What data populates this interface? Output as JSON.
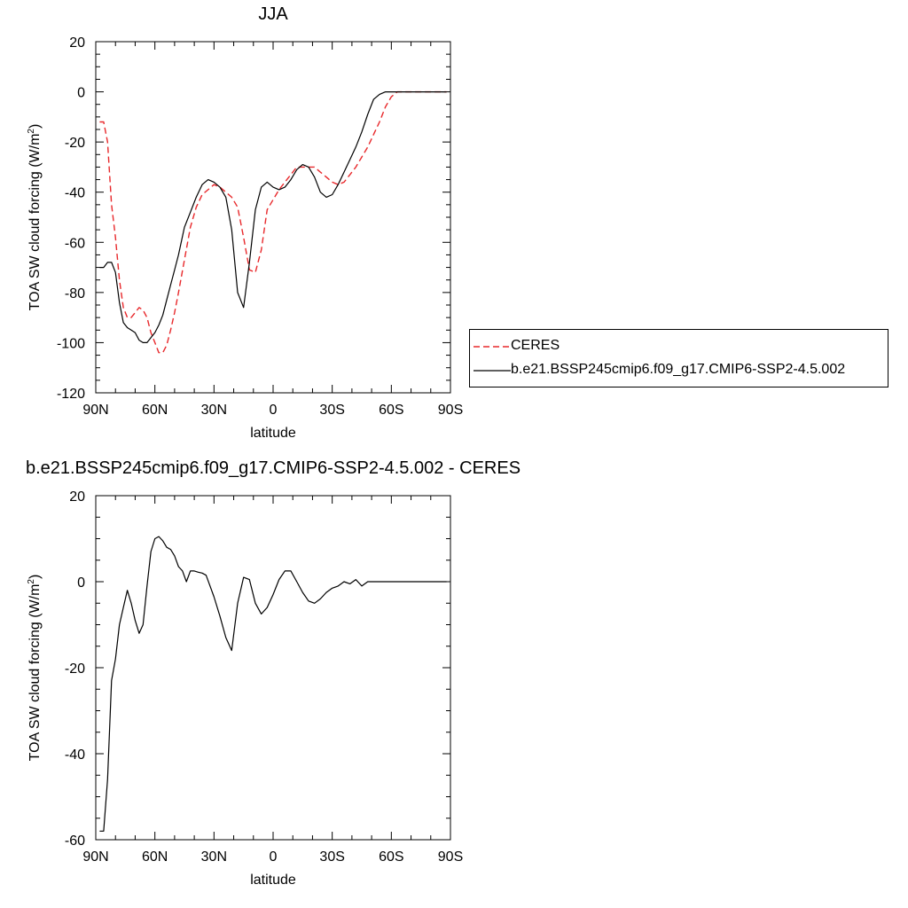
{
  "chart_data": [
    {
      "type": "line",
      "title": "JJA",
      "xlabel": "latitude",
      "ylabel": "TOA SW cloud forcing (W/m",
      "ylabel_sup": "2",
      "ylabel_suffix": ")",
      "xlim": [
        90,
        -90
      ],
      "ylim": [
        -120,
        20
      ],
      "xticks": [
        90,
        60,
        30,
        0,
        -30,
        -60,
        -90
      ],
      "xticklabels": [
        "90N",
        "60N",
        "30N",
        "0",
        "30S",
        "60S",
        "90S"
      ],
      "yticks": [
        20,
        0,
        -20,
        -40,
        -60,
        -80,
        -100,
        -120
      ],
      "yticklabels": [
        "20",
        "0",
        "-20",
        "-40",
        "-60",
        "-80",
        "-100",
        "-120"
      ],
      "legend_position": "right",
      "series": [
        {
          "name": "CERES",
          "color": "#e8282b",
          "style": "dashed",
          "x": [
            88,
            86,
            84,
            82,
            80,
            78,
            76,
            74,
            72,
            70,
            68,
            66,
            64,
            62,
            60,
            58,
            56,
            54,
            52,
            50,
            48,
            45,
            42,
            39,
            36,
            33,
            30,
            27,
            24,
            21,
            18,
            15,
            12,
            9,
            6,
            3,
            0,
            -3,
            -6,
            -9,
            -12,
            -15,
            -18,
            -21,
            -24,
            -27,
            -30,
            -33,
            -36,
            -39,
            -42,
            -45,
            -48,
            -51,
            -54,
            -57,
            -60,
            -63,
            -66,
            -69,
            -72,
            -75,
            -78,
            -81,
            -84,
            -87,
            -88
          ],
          "y": [
            -12,
            -12,
            -20,
            -45,
            -58,
            -75,
            -86,
            -90,
            -90,
            -88,
            -86,
            -87,
            -90,
            -96,
            -100,
            -104,
            -104,
            -101,
            -95,
            -88,
            -80,
            -67,
            -54,
            -46,
            -41,
            -39,
            -37,
            -38,
            -40,
            -42,
            -46,
            -58,
            -71,
            -72,
            -63,
            -47,
            -43,
            -39,
            -36,
            -33,
            -30,
            -30,
            -30,
            -30,
            -32,
            -34,
            -36,
            -37,
            -36,
            -33,
            -30,
            -26,
            -22,
            -17,
            -12,
            -6,
            -2,
            0,
            0,
            0,
            0,
            0,
            0,
            0,
            0,
            0,
            0
          ]
        },
        {
          "name": "b.e21.BSSP245cmip6.f09_g17.CMIP6-SSP2-4.5.002",
          "color": "#000000",
          "style": "solid",
          "x": [
            88,
            86,
            84,
            82,
            80,
            78,
            76,
            74,
            72,
            70,
            68,
            66,
            64,
            62,
            60,
            58,
            56,
            54,
            52,
            50,
            48,
            45,
            42,
            39,
            36,
            33,
            30,
            27,
            24,
            21,
            18,
            15,
            12,
            9,
            6,
            3,
            0,
            -3,
            -6,
            -9,
            -12,
            -15,
            -18,
            -21,
            -24,
            -27,
            -30,
            -33,
            -36,
            -39,
            -42,
            -45,
            -48,
            -51,
            -54,
            -57,
            -60,
            -63,
            -66,
            -69,
            -72,
            -75,
            -78,
            -81,
            -84,
            -87,
            -88
          ],
          "y": [
            -70,
            -70,
            -68,
            -68,
            -72,
            -84,
            -92,
            -94,
            -95,
            -96,
            -99,
            -100,
            -100,
            -98,
            -96,
            -93,
            -89,
            -83,
            -77,
            -71,
            -65,
            -54,
            -48,
            -42,
            -37,
            -35,
            -36,
            -38,
            -42,
            -55,
            -80,
            -86,
            -68,
            -47,
            -38,
            -36,
            -38,
            -39,
            -38,
            -35,
            -31,
            -29,
            -30,
            -34,
            -40,
            -42,
            -41,
            -37,
            -32,
            -27,
            -22,
            -16,
            -9,
            -3,
            -1,
            0,
            0,
            0,
            0,
            0,
            0,
            0,
            0,
            0,
            0,
            0,
            0
          ]
        }
      ]
    },
    {
      "type": "line",
      "title": "b.e21.BSSP245cmip6.f09_g17.CMIP6-SSP2-4.5.002 - CERES",
      "xlabel": "latitude",
      "ylabel": "TOA SW cloud forcing (W/m",
      "ylabel_sup": "2",
      "ylabel_suffix": ")",
      "xlim": [
        90,
        -90
      ],
      "ylim": [
        -60,
        20
      ],
      "xticks": [
        90,
        60,
        30,
        0,
        -30,
        -60,
        -90
      ],
      "xticklabels": [
        "90N",
        "60N",
        "30N",
        "0",
        "30S",
        "60S",
        "90S"
      ],
      "yticks": [
        20,
        0,
        -20,
        -40,
        -60
      ],
      "yticklabels": [
        "20",
        "0",
        "-20",
        "-40",
        "-60"
      ],
      "series": [
        {
          "color": "#000000",
          "style": "solid",
          "x": [
            88,
            86,
            84,
            82,
            80,
            78,
            76,
            74,
            72,
            70,
            68,
            66,
            64,
            62,
            60,
            58,
            56,
            54,
            52,
            50,
            48,
            46,
            44,
            42,
            40,
            38,
            36,
            34,
            32,
            30,
            27,
            24,
            21,
            18,
            15,
            12,
            9,
            6,
            3,
            0,
            -3,
            -6,
            -9,
            -12,
            -15,
            -18,
            -21,
            -24,
            -27,
            -30,
            -33,
            -36,
            -39,
            -42,
            -45,
            -48,
            -51,
            -54,
            -57,
            -60,
            -63,
            -66,
            -69,
            -72,
            -75,
            -78,
            -81,
            -84,
            -87,
            -88
          ],
          "y": [
            -58,
            -58,
            -46,
            -23,
            -18,
            -10,
            -6,
            -2,
            -5,
            -9,
            -12,
            -10,
            -1,
            7,
            10,
            10.5,
            9.5,
            8,
            7.5,
            6,
            3.5,
            2.5,
            0,
            2.5,
            2.5,
            2.2,
            2,
            1.5,
            -1,
            -3.5,
            -8,
            -13,
            -16,
            -5,
            1,
            0.5,
            -5,
            -7.5,
            -6,
            -3,
            0.5,
            2.5,
            2.5,
            0,
            -2.5,
            -4.5,
            -5,
            -4,
            -2.5,
            -1.5,
            -1,
            0,
            -0.5,
            0.5,
            -1,
            0,
            0,
            0,
            0,
            0,
            0,
            0,
            0,
            0,
            0,
            0,
            0,
            0,
            0,
            0
          ]
        }
      ]
    }
  ]
}
